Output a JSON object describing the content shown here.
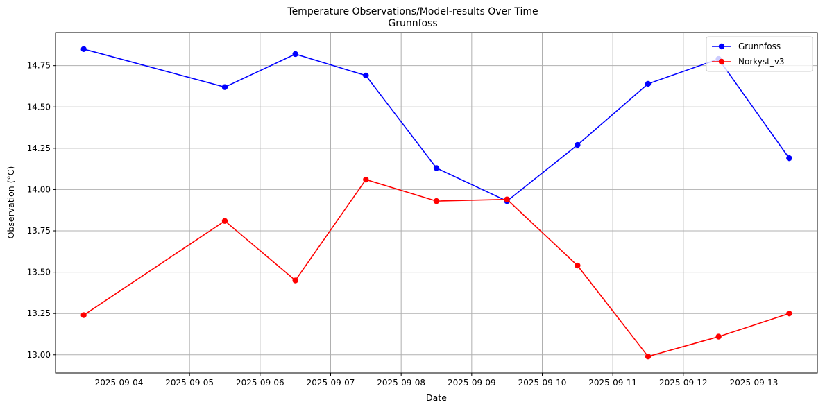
{
  "chart_data": {
    "type": "line",
    "title": "Temperature Observations/Model-results Over Time",
    "subtitle": "Grunnfoss",
    "xlabel": "Date",
    "ylabel": "Observation (°C)",
    "x": [
      "2025-09-03T12:00",
      "2025-09-05T12:00",
      "2025-09-06T12:00",
      "2025-09-07T12:00",
      "2025-09-08T12:00",
      "2025-09-09T12:00",
      "2025-09-10T12:00",
      "2025-09-11T12:00",
      "2025-09-12T12:00",
      "2025-09-13T12:00"
    ],
    "series": [
      {
        "name": "Grunnfoss",
        "color": "#0000ff",
        "values": [
          14.85,
          14.62,
          14.82,
          14.69,
          14.13,
          13.93,
          14.27,
          14.64,
          14.79,
          14.19
        ]
      },
      {
        "name": "Norkyst_v3",
        "color": "#ff0000",
        "values": [
          13.24,
          13.81,
          13.45,
          14.06,
          13.93,
          13.94,
          13.54,
          12.99,
          13.11,
          13.25
        ]
      }
    ],
    "xticks": [
      "2025-09-04",
      "2025-09-05",
      "2025-09-06",
      "2025-09-07",
      "2025-09-08",
      "2025-09-09",
      "2025-09-10",
      "2025-09-11",
      "2025-09-12",
      "2025-09-13"
    ],
    "yticks": [
      "13.00",
      "13.25",
      "13.50",
      "13.75",
      "14.00",
      "14.25",
      "14.50",
      "14.75"
    ],
    "xlim": [
      "2025-09-03T02:24",
      "2025-09-13T21:36"
    ],
    "ylim": [
      12.89,
      14.95
    ],
    "grid": true,
    "legend_position": "top-right"
  }
}
